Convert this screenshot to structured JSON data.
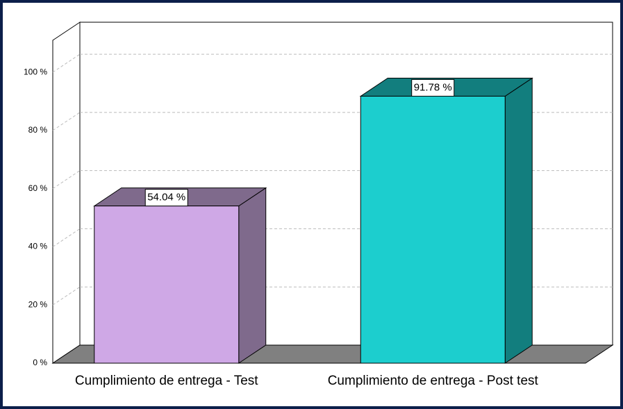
{
  "chart_data": {
    "type": "bar3d",
    "categories": [
      "Cumplimiento de entrega - Test",
      "Cumplimiento de entrega - Post test"
    ],
    "values": [
      54.04,
      91.78
    ],
    "value_labels": [
      "54.04 %",
      "91.78 %"
    ],
    "colors": [
      "#cfa8e6",
      "#1ccece"
    ],
    "side_colors": [
      "#7f6a8c",
      "#127e7e"
    ],
    "ylim": [
      0,
      111
    ],
    "yticks": [
      {
        "value": 0,
        "label": "0 %"
      },
      {
        "value": 20,
        "label": "20 %"
      },
      {
        "value": 40,
        "label": "40 %"
      },
      {
        "value": 60,
        "label": "60 %"
      },
      {
        "value": 80,
        "label": "80 %"
      },
      {
        "value": 100,
        "label": "100 %"
      }
    ],
    "grid": true
  }
}
